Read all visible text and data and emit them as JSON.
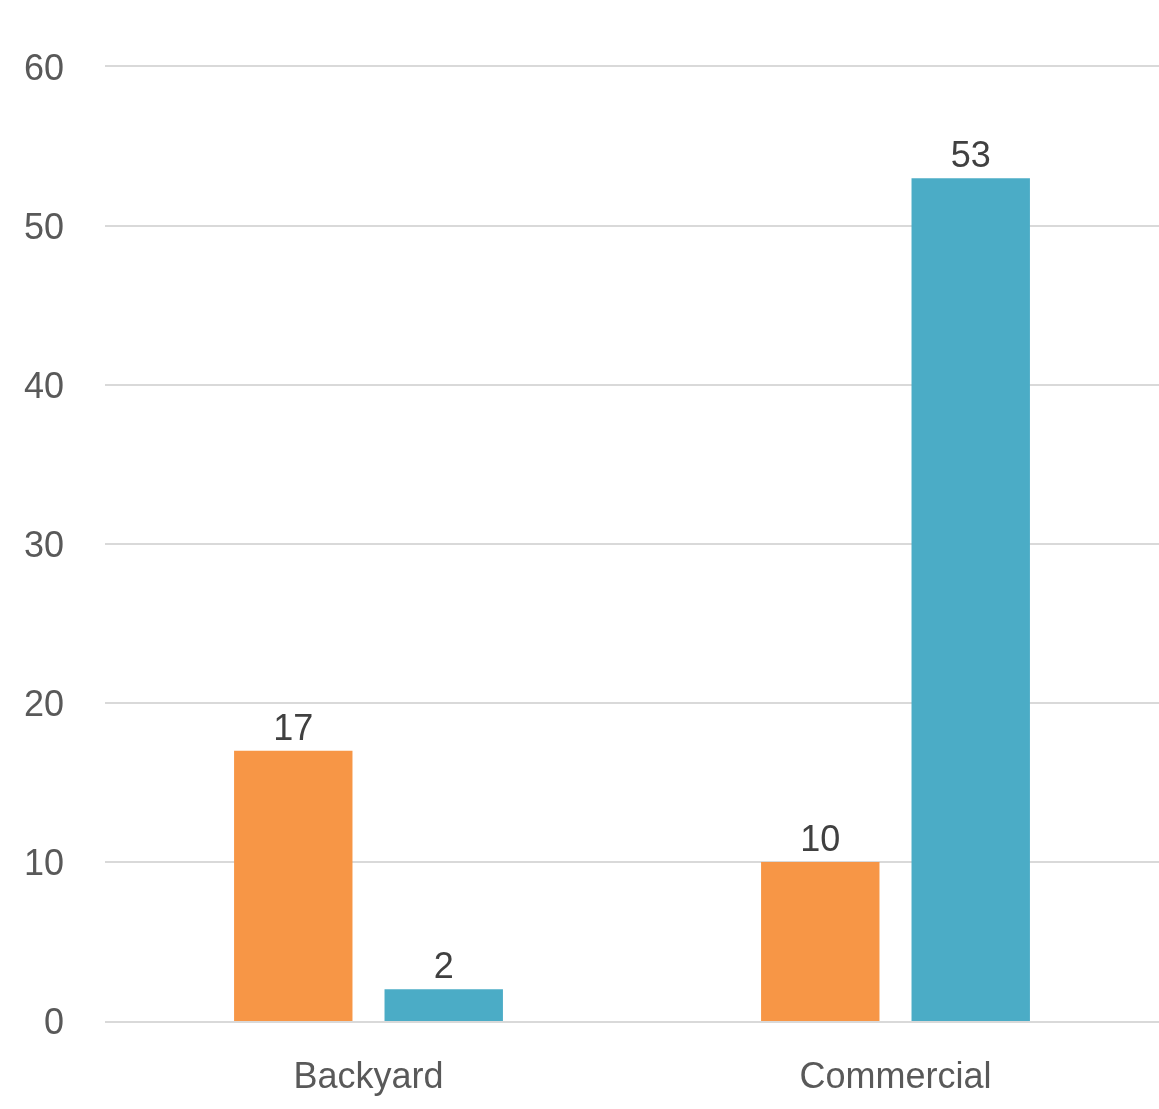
{
  "chart_data": {
    "type": "bar",
    "categories": [
      "Backyard",
      "Commercial"
    ],
    "series": [
      {
        "color": "#f79646",
        "values": [
          17,
          10
        ]
      },
      {
        "color": "#4bacc6",
        "values": [
          2,
          53
        ]
      }
    ],
    "ylim": [
      0,
      60
    ],
    "yticks": [
      0,
      10,
      20,
      30,
      40,
      50,
      60
    ],
    "grid": "y",
    "data_labels": true
  }
}
